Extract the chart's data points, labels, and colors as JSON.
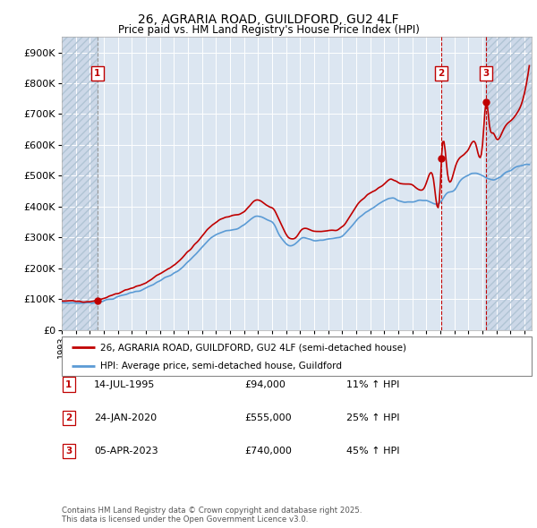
{
  "title": "26, AGRARIA ROAD, GUILDFORD, GU2 4LF",
  "subtitle": "Price paid vs. HM Land Registry's House Price Index (HPI)",
  "ylim": [
    0,
    950000
  ],
  "yticks": [
    0,
    100000,
    200000,
    300000,
    400000,
    500000,
    600000,
    700000,
    800000,
    900000
  ],
  "ytick_labels": [
    "£0",
    "£100K",
    "£200K",
    "£300K",
    "£400K",
    "£500K",
    "£600K",
    "£700K",
    "£800K",
    "£900K"
  ],
  "xlim_start": 1993.0,
  "xlim_end": 2026.5,
  "background_color": "#ffffff",
  "plot_bg_color": "#dce6f1",
  "hatch_bg_color": "#ccd8e8",
  "grid_color": "#ffffff",
  "price_paid_color": "#c00000",
  "hpi_color": "#5b9bd5",
  "transaction_vline_color_dashed": "#a0a0a0",
  "transaction_vline_color_red": "#c00000",
  "legend_label_price": "26, AGRARIA ROAD, GUILDFORD, GU2 4LF (semi-detached house)",
  "legend_label_hpi": "HPI: Average price, semi-detached house, Guildford",
  "transactions": [
    {
      "num": 1,
      "date_label": "14-JUL-1995",
      "price": 94000,
      "pct": "11%",
      "direction": "↑",
      "year": 1995.54,
      "vline_style": "dashed_gray"
    },
    {
      "num": 2,
      "date_label": "24-JAN-2020",
      "price": 555000,
      "pct": "25%",
      "direction": "↑",
      "year": 2020.07,
      "vline_style": "dashed_red"
    },
    {
      "num": 3,
      "date_label": "05-APR-2023",
      "price": 740000,
      "pct": "45%",
      "direction": "↑",
      "year": 2023.26,
      "vline_style": "dashed_red"
    }
  ],
  "footnote": "Contains HM Land Registry data © Crown copyright and database right 2025.\nThis data is licensed under the Open Government Licence v3.0."
}
